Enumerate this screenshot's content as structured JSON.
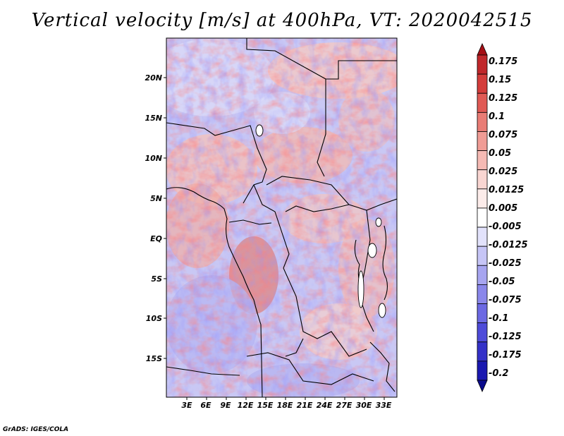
{
  "title": "Vertical velocity [m/s] at 400hPa, VT: 2020042515",
  "credit": "GrADS: IGES/COLA",
  "map": {
    "region": "Central Africa",
    "lat_labels": [
      "20N",
      "15N",
      "10N",
      "5N",
      "EQ",
      "5S",
      "10S",
      "15S"
    ],
    "lon_labels": [
      "3E",
      "6E",
      "9E",
      "12E",
      "15E",
      "18E",
      "21E",
      "24E",
      "27E",
      "30E",
      "33E"
    ]
  },
  "colorbar": {
    "labels": [
      "0.175",
      "0.15",
      "0.125",
      "0.1",
      "0.075",
      "0.05",
      "0.025",
      "0.0125",
      "0.005",
      "-0.005",
      "-0.0125",
      "-0.025",
      "-0.05",
      "-0.075",
      "-0.1",
      "-0.125",
      "-0.175",
      "-0.2"
    ],
    "colors": [
      "#a50f15",
      "#c0282b",
      "#d43d3b",
      "#e05a55",
      "#e97c75",
      "#f09c95",
      "#f5bab4",
      "#f9d6d2",
      "#fcecea",
      "#ffffff",
      "#e2e2fb",
      "#c6c5f6",
      "#a7a5f0",
      "#8a87ea",
      "#6c69e3",
      "#4e4bd9",
      "#3431c8",
      "#1a18b0",
      "#0a0a8c"
    ]
  }
}
